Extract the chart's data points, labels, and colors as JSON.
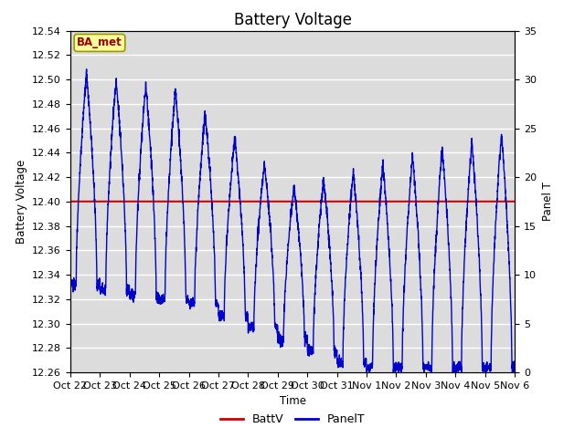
{
  "title": "Battery Voltage",
  "ylabel_left": "Battery Voltage",
  "ylabel_right": "Panel T",
  "xlabel": "Time",
  "ylim_left": [
    12.26,
    12.54
  ],
  "ylim_right": [
    0,
    35
  ],
  "yticks_left": [
    12.26,
    12.28,
    12.3,
    12.32,
    12.34,
    12.36,
    12.38,
    12.4,
    12.42,
    12.44,
    12.46,
    12.48,
    12.5,
    12.52,
    12.54
  ],
  "yticks_right": [
    0,
    5,
    10,
    15,
    20,
    25,
    30,
    35
  ],
  "batt_v": 12.4,
  "batt_color": "#cc0000",
  "panel_color": "#0000cc",
  "plot_bg_color": "#dcdcdc",
  "annotation_text": "BA_met",
  "annotation_bg": "#ffff99",
  "annotation_border": "#999900",
  "annotation_text_color": "#990000",
  "x_tick_labels": [
    "Oct 22",
    "Oct 23",
    "Oct 24",
    "Oct 25",
    "Oct 26",
    "Oct 27",
    "Oct 28",
    "Oct 29",
    "Oct 30",
    "Oct 31",
    "Nov 1",
    "Nov 2",
    "Nov 3",
    "Nov 4",
    "Nov 5",
    "Nov 6"
  ],
  "n_days": 15,
  "title_fontsize": 12,
  "tick_fontsize": 8,
  "axis_label_fontsize": 8.5
}
